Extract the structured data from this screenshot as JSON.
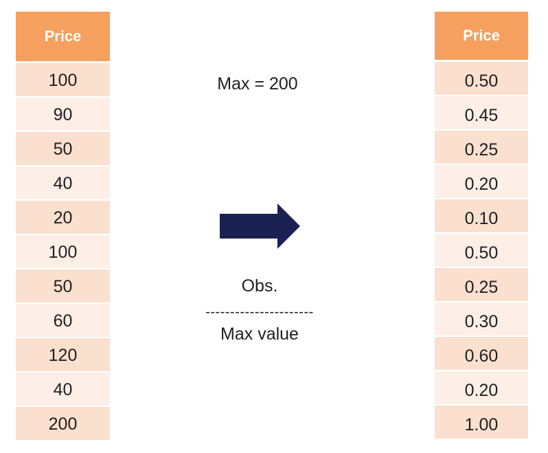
{
  "left_table": {
    "header": "Price",
    "values": [
      "100",
      "90",
      "50",
      "40",
      "20",
      "100",
      "50",
      "60",
      "120",
      "40",
      "200"
    ]
  },
  "right_table": {
    "header": "Price",
    "values": [
      "0.50",
      "0.45",
      "0.25",
      "0.20",
      "0.10",
      "0.50",
      "0.25",
      "0.30",
      "0.60",
      "0.20",
      "1.00"
    ]
  },
  "max_label": "Max = 200",
  "formula": {
    "numerator": "Obs.",
    "divider": "----------------------",
    "denominator": "Max value"
  },
  "colors": {
    "header": "#f5a05e",
    "row_dark": "#fbdfcf",
    "row_light": "#fdefe7",
    "arrow": "#1b2152"
  },
  "icons": {
    "arrow": "right-arrow-icon"
  }
}
